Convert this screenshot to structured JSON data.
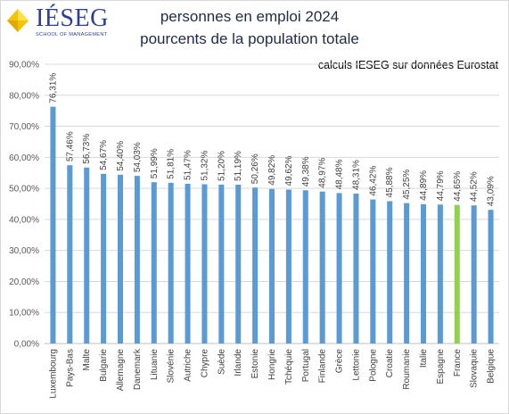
{
  "logo": {
    "name": "IÉSEG",
    "tagline": "SCHOOL OF MANAGEMENT"
  },
  "header": {
    "title_line1": "personnes en emploi 2024",
    "title_line2": "pourcents de la population totale",
    "source": "calculs IESEG sur données Eurostat"
  },
  "colors": {
    "bar": "#5b9bd5",
    "highlight": "#92d050",
    "grid": "#d9d9d9",
    "axis": "#bfbfbf"
  },
  "chart_data": {
    "type": "bar",
    "title": "personnes en emploi 2024",
    "subtitle": "pourcents de la population totale",
    "xlabel": "",
    "ylabel": "",
    "ylim": [
      0,
      90
    ],
    "yticks": [
      "0,00%",
      "10,00%",
      "20,00%",
      "30,00%",
      "40,00%",
      "50,00%",
      "60,00%",
      "70,00%",
      "80,00%",
      "90,00%"
    ],
    "grid": true,
    "legend": "none",
    "highlight_category": "France",
    "categories": [
      "Luxembourg",
      "Pays-Bas",
      "Malte",
      "Bulgarie",
      "Allemagne",
      "Danemark",
      "Lituanie",
      "Slovénie",
      "Autriche",
      "Chypre",
      "Suède",
      "Irlande",
      "Estonie",
      "Hongrie",
      "Tchéquie",
      "Portugal",
      "Finlande",
      "Grèce",
      "Lettonie",
      "Pologne",
      "Croatie",
      "Roumanie",
      "Italie",
      "Espagne",
      "France",
      "Slovaquie",
      "Belgique"
    ],
    "values": [
      76.31,
      57.46,
      56.73,
      54.67,
      54.4,
      54.03,
      51.99,
      51.81,
      51.47,
      51.32,
      51.2,
      51.19,
      50.26,
      49.82,
      49.62,
      49.38,
      48.97,
      48.48,
      48.31,
      46.42,
      45.88,
      45.25,
      44.89,
      44.79,
      44.65,
      44.52,
      43.09
    ],
    "data_labels": [
      "76,31%",
      "57,46%",
      "56,73%",
      "54,67%",
      "54,40%",
      "54,03%",
      "51,99%",
      "51,81%",
      "51,47%",
      "51,32%",
      "51,20%",
      "51,19%",
      "50,26%",
      "49,82%",
      "49,62%",
      "49,38%",
      "48,97%",
      "48,48%",
      "48,31%",
      "46,42%",
      "45,88%",
      "45,25%",
      "44,89%",
      "44,79%",
      "44,65%",
      "44,52%",
      "43,09%"
    ]
  }
}
